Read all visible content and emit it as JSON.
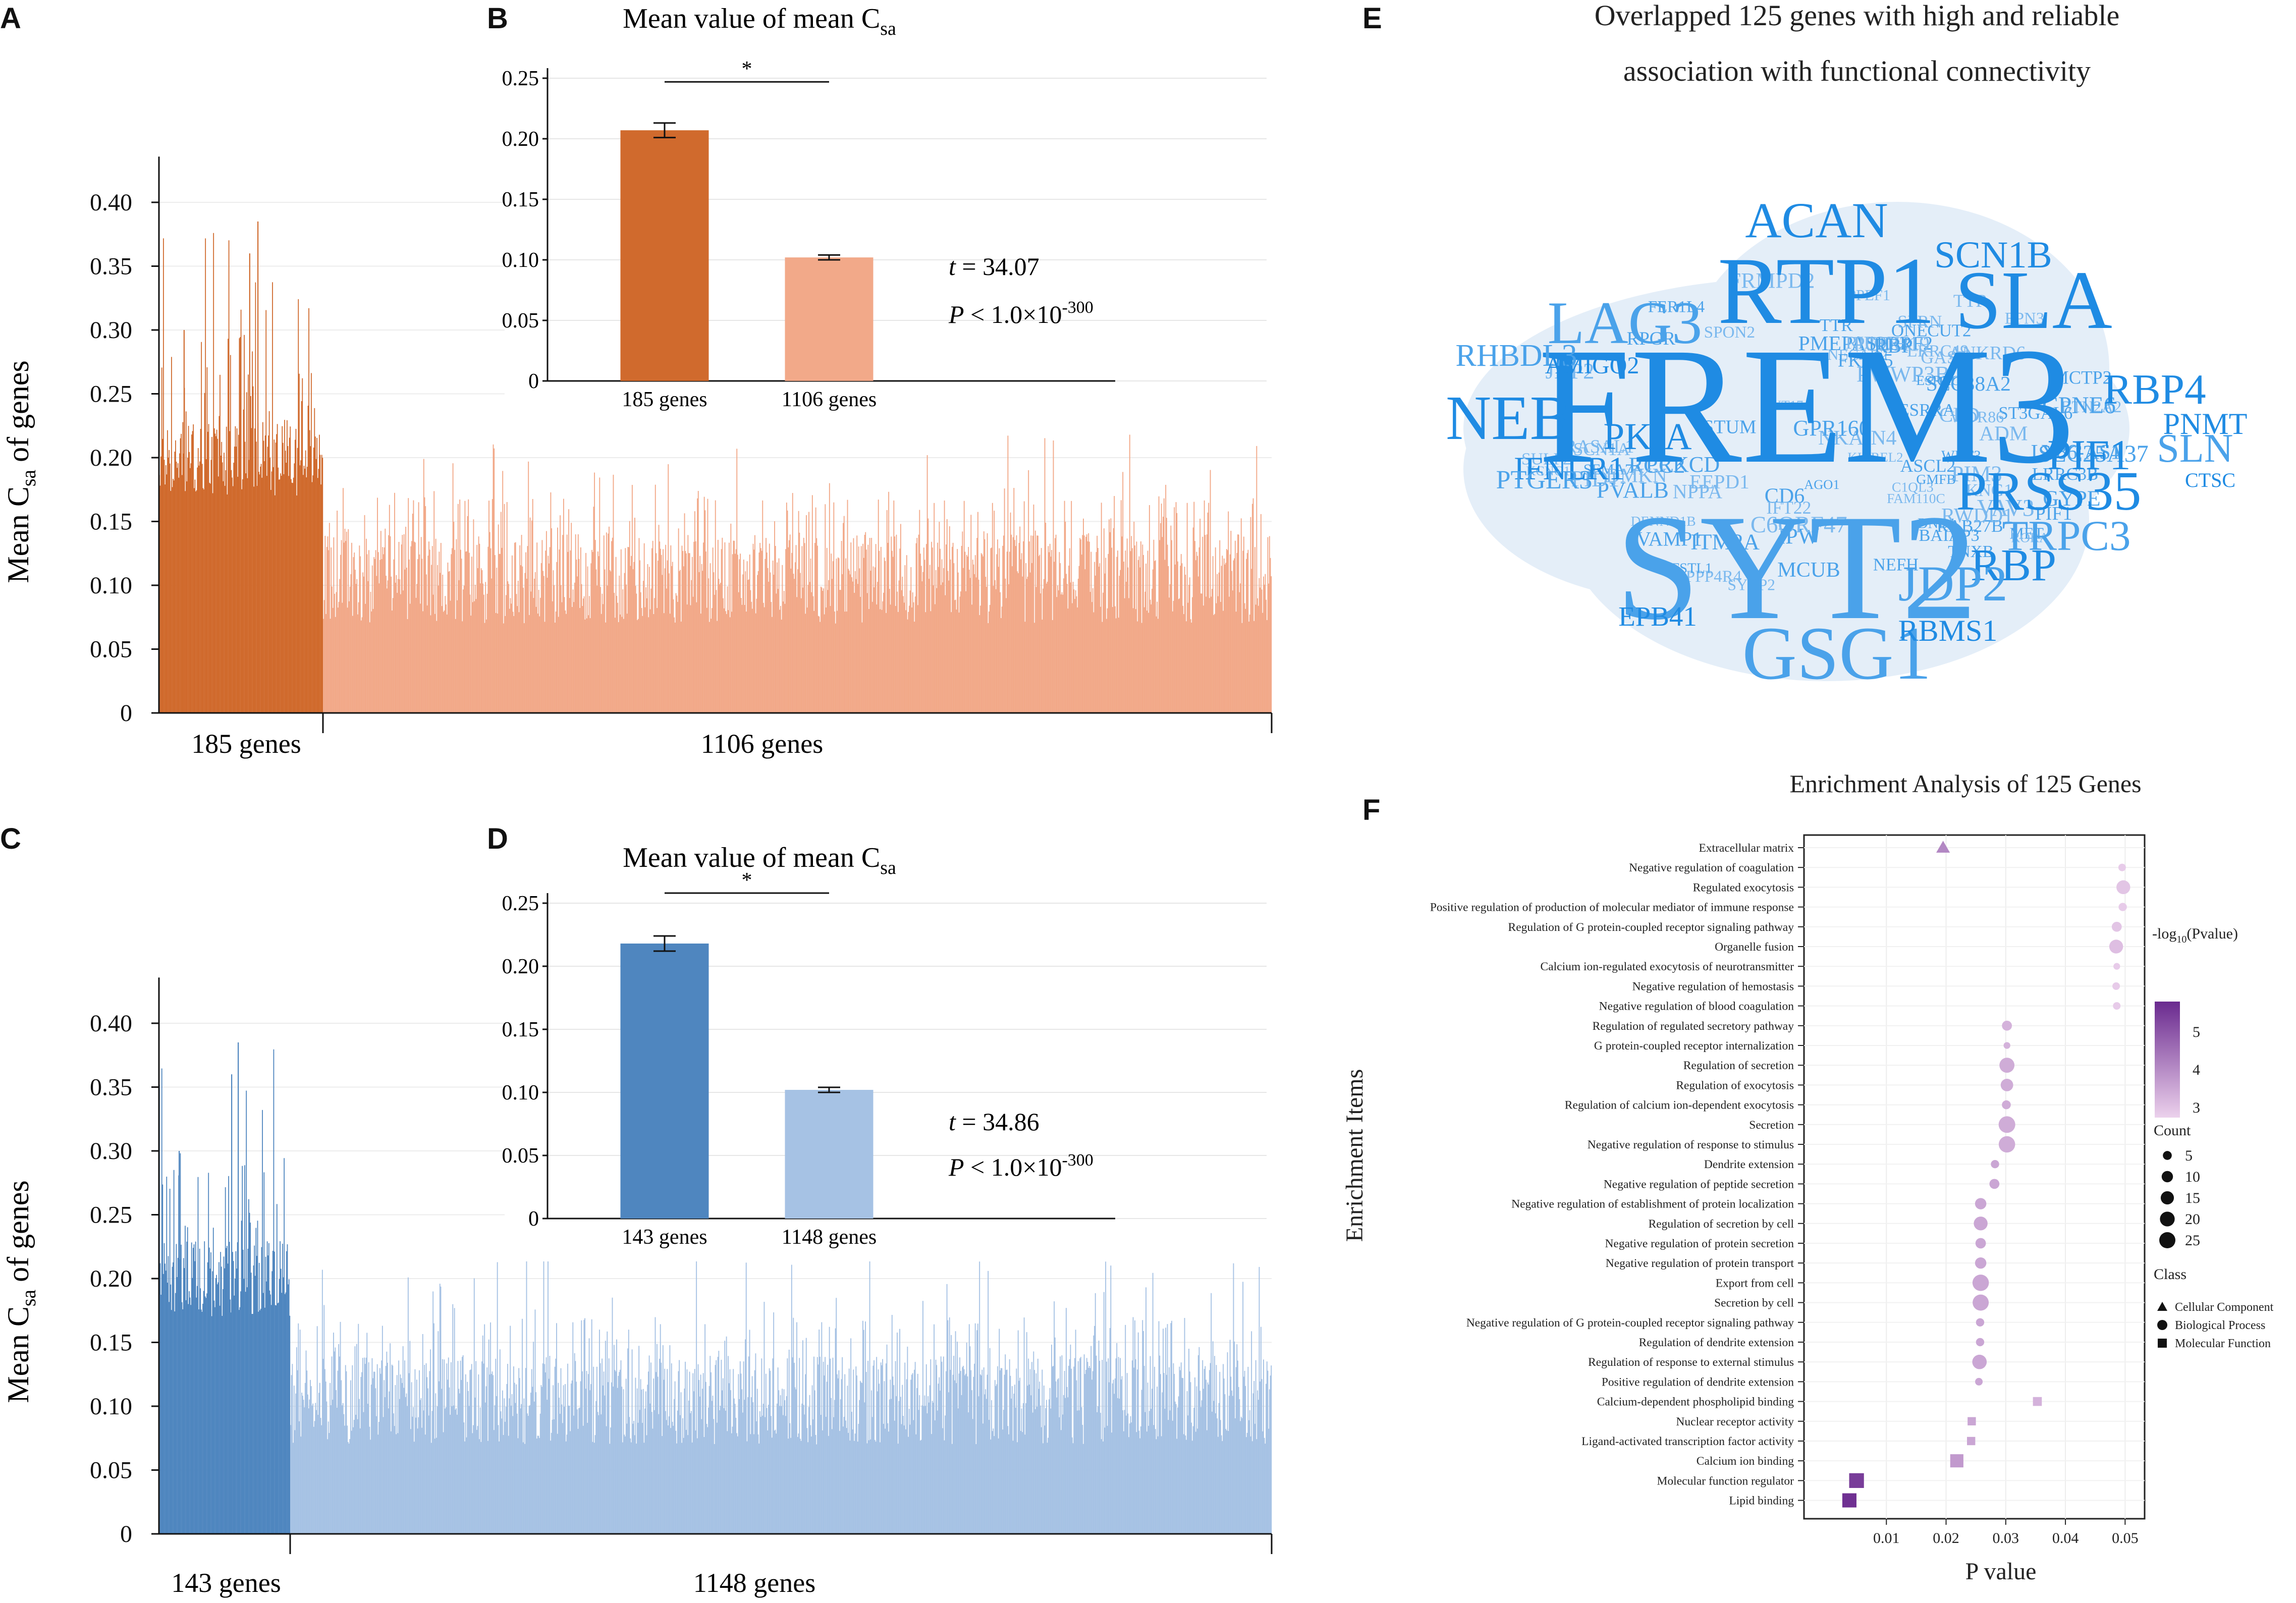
{
  "panel_labels": {
    "A": "A",
    "B": "B",
    "C": "C",
    "D": "D",
    "E": "E",
    "F": "F"
  },
  "colors": {
    "orange_dark": "#d06a2d",
    "orange_light": "#f2a989",
    "blue_dark": "#4f86bf",
    "blue_light": "#a6c2e4",
    "word_dark": "#1f8be3",
    "word_mid": "#4aa2ea",
    "word_light": "#7ab8ee",
    "cloud_bg": "#e4eef8",
    "purple_dark": "#6a2a8f",
    "purple_light": "#e7c9e9"
  },
  "panelA": {
    "ylabel_main": "Mean C",
    "ylabel_sub": "sa",
    "ylabel_tail": " of genes",
    "yticks": [
      "0",
      "0.05",
      "0.10",
      "0.15",
      "0.20",
      "0.25",
      "0.30",
      "0.35",
      "0.40"
    ],
    "group1_label": "185 genes",
    "group2_label": "1106 genes",
    "group1_count": 185,
    "group2_count": 1106
  },
  "panelB": {
    "title_main": "Mean value of mean C",
    "title_sub": "sa",
    "yticks": [
      "0",
      "0.05",
      "0.10",
      "0.15",
      "0.20",
      "0.25"
    ],
    "categories": [
      "185 genes",
      "1106 genes"
    ],
    "values": [
      0.207,
      0.102
    ],
    "errors": [
      0.006,
      0.002
    ],
    "sig": "*",
    "t_label": "t",
    "t_value": " = 34.07",
    "p_label": "P",
    "p_value": " < 1.0×10",
    "p_exp": "-300"
  },
  "panelC": {
    "ylabel_main": "Mean C",
    "ylabel_sub": "sa",
    "ylabel_tail": " of genes",
    "yticks": [
      "0",
      "0.05",
      "0.10",
      "0.15",
      "0.20",
      "0.25",
      "0.30",
      "0.35",
      "0.40"
    ],
    "group1_label": "143 genes",
    "group2_label": "1148 genes",
    "group1_count": 143,
    "group2_count": 1148
  },
  "panelD": {
    "title_main": "Mean value of mean C",
    "title_sub": "sa",
    "yticks": [
      "0",
      "0.05",
      "0.10",
      "0.15",
      "0.20",
      "0.25"
    ],
    "categories": [
      "143 genes",
      "1148 genes"
    ],
    "values": [
      0.218,
      0.102
    ],
    "errors": [
      0.006,
      0.002
    ],
    "sig": "*",
    "t_label": "t",
    "t_value": " = 34.86",
    "p_label": "P",
    "p_value": " < 1.0×10",
    "p_exp": "-300"
  },
  "panelE": {
    "title_line1": "Overlapped 125 genes with high and reliable",
    "title_line2": "association with functional connectivity",
    "words_big": [
      "FREM3",
      "SYT2",
      "RTP1",
      "SLA",
      "LAG3",
      "ACAN",
      "NEB",
      "GSG1",
      "PRSS35",
      "RBP4",
      "TRPC3",
      "RBP",
      "PIF1",
      "SLN",
      "PNMT",
      "SCN1B",
      "JDP2",
      "PKIA",
      "IFNLR1",
      "RHBDL3",
      "EPB41",
      "RBMS1",
      "PTGER3",
      "AMIGO2",
      "CTSC"
    ],
    "words_small": [
      "PWWP3B",
      "VAMP1",
      "VAV3",
      "RAB27B",
      "TTR",
      "CD6",
      "EPN3",
      "FER1L4",
      "SCN1A",
      "GYPE",
      "ADM",
      "ONECUT2",
      "BTN2A2",
      "RCC2",
      "SYCP2",
      "PMEPA1",
      "EEPD1",
      "CPNE6",
      "CFD",
      "DND1",
      "NPPA",
      "ESRRG",
      "SYT17",
      "SEMA7A",
      "NKAIN4",
      "ASCL2",
      "RWDD1",
      "ST3GAL6",
      "RASAL1",
      "GPR160",
      "KIRREL2",
      "ESRRA",
      "PIM3",
      "STUM",
      "FRMPD2",
      "MET",
      "PPEF1",
      "ITM2A",
      "NECAB2",
      "LY86-AS1",
      "ANKRD6",
      "WNT3",
      "WDR86",
      "SLC25A37",
      "RIPOR2",
      "IPW",
      "KNG1",
      "SH3RF2",
      "C1QL3",
      "MCUB",
      "PCDH19",
      "RPGR",
      "KCNG1",
      "PRKCD",
      "DMKN",
      "PVALB",
      "PPP4R4",
      "LRRC3B",
      "C6ORF47",
      "BAIAP3",
      "FAM110C",
      "AGO1",
      "SULF2",
      "FSTL1",
      "PID1",
      "TNXB",
      "SPRN",
      "GMFB",
      "IFT22",
      "SLC38A2",
      "LRRC49",
      "FKBP5",
      "DENND1B",
      "TTR",
      "RORA",
      "PIF1",
      "SPON2",
      "MCTP2",
      "GAS7",
      "NEFH",
      "JDP2",
      "RBP"
    ]
  },
  "panelF": {
    "title": "Enrichment Analysis of 125 Genes",
    "ylabel": "Enrichment Items",
    "xlabel": "P value",
    "xticks": [
      "0.01",
      "0.02",
      "0.03",
      "0.04",
      "0.05"
    ],
    "legend_title_main": "-log",
    "legend_title_sub": "10",
    "legend_title_tail": "(Pvalue)",
    "legend_ticks": [
      "5",
      "4",
      "3"
    ],
    "count_title": "Count",
    "count_labels": [
      "5",
      "10",
      "15",
      "20",
      "25"
    ],
    "class_title": "Class",
    "class_labels": [
      "Cellular Component",
      "Biological Process",
      "Molecular Function"
    ]
  },
  "chart_data": [
    {
      "type": "bar",
      "panel": "A",
      "title": "",
      "xlabel": "",
      "ylabel": "Mean Csa of genes",
      "ylim": [
        0,
        0.42
      ],
      "series": [
        {
          "name": "185 genes",
          "n": 185,
          "typical_range": [
            0.1,
            0.3
          ],
          "max": 0.385
        },
        {
          "name": "1106 genes",
          "n": 1106,
          "typical_range": [
            0.05,
            0.2
          ],
          "max": 0.23
        }
      ]
    },
    {
      "type": "bar",
      "panel": "B",
      "title": "Mean value of mean Csa",
      "categories": [
        "185 genes",
        "1106 genes"
      ],
      "values": [
        0.207,
        0.102
      ],
      "errors": [
        0.006,
        0.002
      ],
      "ylim": [
        0,
        0.25
      ],
      "annotation": "t = 34.07, P < 1.0×10-300"
    },
    {
      "type": "bar",
      "panel": "C",
      "title": "",
      "xlabel": "",
      "ylabel": "Mean Csa of genes",
      "ylim": [
        0,
        0.42
      ],
      "series": [
        {
          "name": "143 genes",
          "n": 143,
          "typical_range": [
            0.1,
            0.3
          ],
          "max": 0.385
        },
        {
          "name": "1148 genes",
          "n": 1148,
          "typical_range": [
            0.05,
            0.19
          ],
          "max": 0.19
        }
      ]
    },
    {
      "type": "bar",
      "panel": "D",
      "title": "Mean value of mean Csa",
      "categories": [
        "143 genes",
        "1148 genes"
      ],
      "values": [
        0.218,
        0.102
      ],
      "errors": [
        0.006,
        0.002
      ],
      "ylim": [
        0,
        0.25
      ],
      "annotation": "t = 34.86, P < 1.0×10-300"
    },
    {
      "type": "scatter",
      "panel": "F",
      "title": "Enrichment Analysis of 125 Genes",
      "xlabel": "P value",
      "ylabel": "Enrichment Items",
      "xlim": [
        0,
        0.052
      ],
      "items": [
        {
          "term": "Extracellular matrix",
          "p": 0.0195,
          "count": 13,
          "nlog": 4.1,
          "class": "Cellular Component"
        },
        {
          "term": "Negative regulation of coagulation",
          "p": 0.0495,
          "count": 3,
          "nlog": 3.0,
          "class": "Biological Process"
        },
        {
          "term": "Regulated exocytosis",
          "p": 0.0497,
          "count": 17,
          "nlog": 3.1,
          "class": "Biological Process"
        },
        {
          "term": "Positive regulation of production of molecular mediator of immune response",
          "p": 0.0496,
          "count": 4,
          "nlog": 3.0,
          "class": "Biological Process"
        },
        {
          "term": "Regulation of G protein-coupled receptor signaling pathway",
          "p": 0.0486,
          "count": 7,
          "nlog": 3.1,
          "class": "Biological Process"
        },
        {
          "term": "Organelle fusion",
          "p": 0.0485,
          "count": 17,
          "nlog": 3.2,
          "class": "Biological Process"
        },
        {
          "term": "Calcium ion-regulated exocytosis of neurotransmitter",
          "p": 0.0486,
          "count": 2,
          "nlog": 3.0,
          "class": "Biological Process"
        },
        {
          "term": "Negative regulation of hemostasis",
          "p": 0.0485,
          "count": 3,
          "nlog": 3.0,
          "class": "Biological Process"
        },
        {
          "term": "Negative regulation of blood coagulation",
          "p": 0.0486,
          "count": 3,
          "nlog": 3.0,
          "class": "Biological Process"
        },
        {
          "term": "Regulation of regulated secretory pathway",
          "p": 0.0302,
          "count": 7,
          "nlog": 3.4,
          "class": "Biological Process"
        },
        {
          "term": "G protein-coupled receptor internalization",
          "p": 0.0302,
          "count": 2,
          "nlog": 3.4,
          "class": "Biological Process"
        },
        {
          "term": "Regulation of secretion",
          "p": 0.0302,
          "count": 21,
          "nlog": 3.5,
          "class": "Biological Process"
        },
        {
          "term": "Regulation of exocytosis",
          "p": 0.0302,
          "count": 13,
          "nlog": 3.5,
          "class": "Biological Process"
        },
        {
          "term": "Regulation of calcium ion-dependent exocytosis",
          "p": 0.0301,
          "count": 5,
          "nlog": 3.5,
          "class": "Biological Process"
        },
        {
          "term": "Secretion",
          "p": 0.0302,
          "count": 27,
          "nlog": 3.5,
          "class": "Biological Process"
        },
        {
          "term": "Negative regulation of response to stimulus",
          "p": 0.0302,
          "count": 26,
          "nlog": 3.5,
          "class": "Biological Process"
        },
        {
          "term": "Dendrite extension",
          "p": 0.0282,
          "count": 4,
          "nlog": 3.6,
          "class": "Biological Process"
        },
        {
          "term": "Negative regulation of peptide secretion",
          "p": 0.0281,
          "count": 7,
          "nlog": 3.6,
          "class": "Biological Process"
        },
        {
          "term": "Negative regulation of establishment of protein localization",
          "p": 0.0258,
          "count": 10,
          "nlog": 3.6,
          "class": "Biological Process"
        },
        {
          "term": "Regulation of secretion by cell",
          "p": 0.0258,
          "count": 17,
          "nlog": 3.6,
          "class": "Biological Process"
        },
        {
          "term": "Negative regulation of protein secretion",
          "p": 0.0258,
          "count": 8,
          "nlog": 3.6,
          "class": "Biological Process"
        },
        {
          "term": "Negative regulation of protein transport",
          "p": 0.0258,
          "count": 10,
          "nlog": 3.6,
          "class": "Biological Process"
        },
        {
          "term": "Export from cell",
          "p": 0.0258,
          "count": 26,
          "nlog": 3.6,
          "class": "Biological Process"
        },
        {
          "term": "Secretion by cell",
          "p": 0.0258,
          "count": 25,
          "nlog": 3.6,
          "class": "Biological Process"
        },
        {
          "term": "Negative regulation of G protein-coupled receptor signaling pathway",
          "p": 0.0257,
          "count": 4,
          "nlog": 3.6,
          "class": "Biological Process"
        },
        {
          "term": "Regulation of dendrite extension",
          "p": 0.0257,
          "count": 4,
          "nlog": 3.6,
          "class": "Biological Process"
        },
        {
          "term": "Regulation of response to external stimulus",
          "p": 0.0256,
          "count": 19,
          "nlog": 3.6,
          "class": "Biological Process"
        },
        {
          "term": "Positive regulation of dendrite extension",
          "p": 0.0255,
          "count": 3,
          "nlog": 3.6,
          "class": "Biological Process"
        },
        {
          "term": "Calcium-dependent phospholipid binding",
          "p": 0.0353,
          "count": 5,
          "nlog": 3.4,
          "class": "Molecular Function"
        },
        {
          "term": "Nuclear receptor activity",
          "p": 0.0243,
          "count": 4,
          "nlog": 3.6,
          "class": "Molecular Function"
        },
        {
          "term": "Ligand-activated transcription factor activity",
          "p": 0.0242,
          "count": 4,
          "nlog": 3.6,
          "class": "Molecular Function"
        },
        {
          "term": "Calcium ion binding",
          "p": 0.0218,
          "count": 15,
          "nlog": 3.8,
          "class": "Molecular Function"
        },
        {
          "term": "Molecular function regulator",
          "p": 0.005,
          "count": 20,
          "nlog": 5.3,
          "class": "Molecular Function"
        },
        {
          "term": "Lipid binding",
          "p": 0.0038,
          "count": 18,
          "nlog": 5.5,
          "class": "Molecular Function"
        }
      ]
    }
  ]
}
